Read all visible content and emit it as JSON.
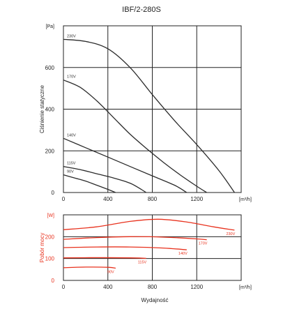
{
  "chart_data": [
    {
      "type": "line",
      "title": "IBF/2-280S",
      "ylabel": "Ciśnienie statyczne",
      "yunit": "[Pa]",
      "xunit": "[m³/h]",
      "xlim": [
        0,
        1600
      ],
      "ylim": [
        0,
        800
      ],
      "xticks": [
        0,
        400,
        800,
        1200
      ],
      "yticks": [
        0,
        200,
        400,
        600
      ],
      "grid": true,
      "line_color": "#2b2b2b",
      "series": [
        {
          "name": "230V",
          "x": [
            0,
            200,
            400,
            600,
            800,
            1000,
            1200,
            1400,
            1540
          ],
          "y": [
            735,
            725,
            690,
            600,
            470,
            345,
            230,
            105,
            0
          ]
        },
        {
          "name": "170V",
          "x": [
            0,
            150,
            300,
            450,
            600,
            750,
            900,
            1050,
            1200,
            1290
          ],
          "y": [
            540,
            505,
            440,
            360,
            280,
            210,
            145,
            85,
            30,
            0
          ]
        },
        {
          "name": "140V",
          "x": [
            0,
            200,
            400,
            600,
            800,
            1000,
            1110
          ],
          "y": [
            260,
            215,
            170,
            125,
            80,
            35,
            0
          ]
        },
        {
          "name": "115V",
          "x": [
            0,
            150,
            300,
            450,
            600,
            700,
            745
          ],
          "y": [
            125,
            110,
            90,
            70,
            45,
            15,
            0
          ]
        },
        {
          "name": "90V",
          "x": [
            0,
            100,
            200,
            300,
            400,
            470
          ],
          "y": [
            85,
            70,
            55,
            35,
            15,
            0
          ]
        }
      ]
    },
    {
      "type": "line",
      "ylabel": "Pobór mocy",
      "yunit": "[W]",
      "xlabel": "Wydajność",
      "xunit": "[m³/h]",
      "xlim": [
        0,
        1600
      ],
      "ylim": [
        0,
        300
      ],
      "xticks": [
        0,
        400,
        800,
        1200
      ],
      "yticks": [
        0,
        100,
        200
      ],
      "grid": true,
      "line_color": "#e8321e",
      "series": [
        {
          "name": "230V",
          "x": [
            0,
            300,
            600,
            850,
            1100,
            1350,
            1540
          ],
          "y": [
            232,
            245,
            270,
            280,
            268,
            245,
            230
          ]
        },
        {
          "name": "170V",
          "x": [
            0,
            300,
            600,
            900,
            1200,
            1290
          ],
          "y": [
            188,
            196,
            200,
            198,
            190,
            186
          ]
        },
        {
          "name": "140V",
          "x": [
            0,
            300,
            600,
            900,
            1110
          ],
          "y": [
            150,
            153,
            153,
            148,
            140
          ]
        },
        {
          "name": "115V",
          "x": [
            0,
            300,
            600,
            745
          ],
          "y": [
            103,
            104,
            103,
            101
          ]
        },
        {
          "name": "90V",
          "x": [
            0,
            200,
            400,
            470
          ],
          "y": [
            58,
            61,
            60,
            56
          ]
        }
      ]
    }
  ]
}
